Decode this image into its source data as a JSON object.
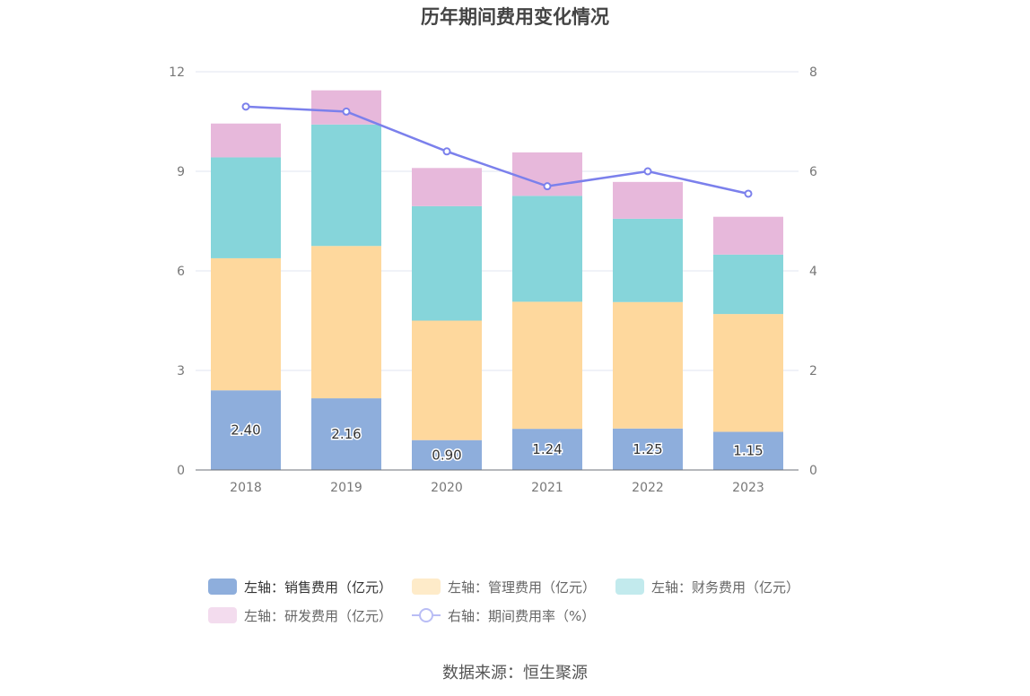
{
  "chart_data": {
    "type": "bar",
    "title": "历年期间费用变化情况",
    "categories": [
      "2018",
      "2019",
      "2020",
      "2021",
      "2022",
      "2023"
    ],
    "stacked": true,
    "y_left": {
      "lim": [
        0,
        12
      ],
      "ticks": [
        "0",
        "3",
        "6",
        "9",
        "12"
      ]
    },
    "y_right": {
      "lim": [
        0,
        8
      ],
      "ticks": [
        "0",
        "2",
        "4",
        "6",
        "8"
      ]
    },
    "series": [
      {
        "name": "左轴：销售费用（亿元）",
        "axis": "left",
        "type": "bar",
        "color": "#8eaedc",
        "values": [
          2.4,
          2.16,
          0.9,
          1.24,
          1.25,
          1.15
        ],
        "labels": [
          "2.40",
          "2.16",
          "0.90",
          "1.24",
          "1.25",
          "1.15"
        ]
      },
      {
        "name": "左轴：管理费用（亿元）",
        "axis": "left",
        "type": "bar",
        "color": "#fed89d",
        "values": [
          3.98,
          4.59,
          3.6,
          3.83,
          3.81,
          3.55
        ]
      },
      {
        "name": "左轴：财务费用（亿元）",
        "axis": "left",
        "type": "bar",
        "color": "#86d5da",
        "values": [
          3.04,
          3.66,
          3.45,
          3.19,
          2.51,
          1.79
        ]
      },
      {
        "name": "左轴：研发费用（亿元）",
        "axis": "left",
        "type": "bar",
        "color": "#e7b8db",
        "values": [
          1.02,
          1.03,
          1.15,
          1.31,
          1.11,
          1.14
        ]
      },
      {
        "name": "右轴：期间费用率（%）",
        "axis": "right",
        "type": "line",
        "color": "#7b80ec",
        "values": [
          7.3,
          7.2,
          6.4,
          5.7,
          6.0,
          5.55
        ]
      }
    ],
    "grid": true,
    "legend_position": "bottom"
  },
  "source": "数据来源：恒生聚源"
}
